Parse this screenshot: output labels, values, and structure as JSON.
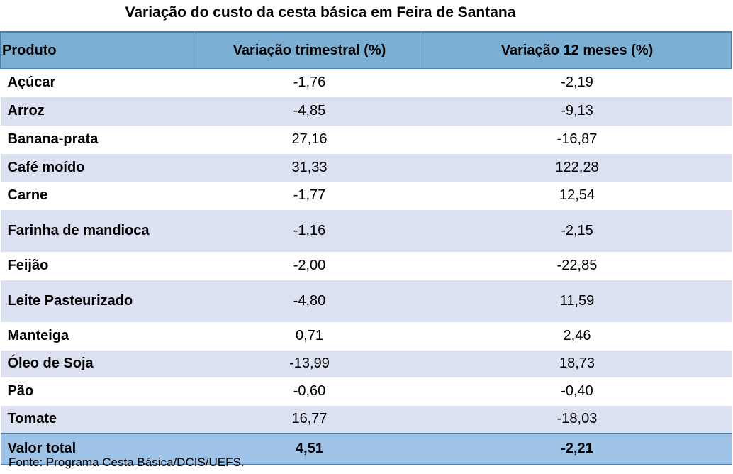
{
  "title": "Variação do custo da cesta básica em Feira de Santana",
  "table": {
    "headers": [
      "Produto",
      "Variação trimestral (%)",
      "Variação 12 meses (%)"
    ],
    "rows": [
      {
        "produto": "Açúcar",
        "trimestral": "-1,76",
        "doze_meses": "-2,19"
      },
      {
        "produto": "Arroz",
        "trimestral": "-4,85",
        "doze_meses": "-9,13"
      },
      {
        "produto": "Banana-prata",
        "trimestral": "27,16",
        "doze_meses": "-16,87"
      },
      {
        "produto": "Café moído",
        "trimestral": "31,33",
        "doze_meses": "122,28"
      },
      {
        "produto": "Carne",
        "trimestral": "-1,77",
        "doze_meses": "12,54"
      },
      {
        "produto": "Farinha de mandioca",
        "trimestral": "-1,16",
        "doze_meses": "-2,15"
      },
      {
        "produto": "Feijão",
        "trimestral": "-2,00",
        "doze_meses": "-22,85"
      },
      {
        "produto": "Leite Pasteurizado",
        "trimestral": "-4,80",
        "doze_meses": "11,59"
      },
      {
        "produto": "Manteiga",
        "trimestral": "0,71",
        "doze_meses": "2,46"
      },
      {
        "produto": "Óleo de Soja",
        "trimestral": "-13,99",
        "doze_meses": "18,73"
      },
      {
        "produto": "Pão",
        "trimestral": "-0,60",
        "doze_meses": "-0,40"
      },
      {
        "produto": "Tomate",
        "trimestral": "16,77",
        "doze_meses": "-18,03"
      }
    ],
    "total": {
      "label": "Valor total",
      "trimestral": "4,51",
      "doze_meses": "-2,21"
    }
  },
  "source": "Fonte: Programa Cesta Básica/DCIS/UEFS."
}
